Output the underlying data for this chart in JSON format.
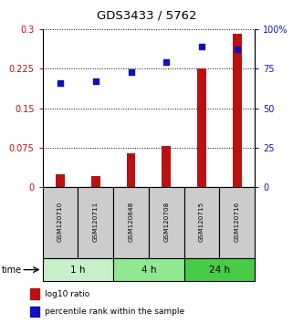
{
  "title": "GDS3433 / 5762",
  "samples": [
    "GSM120710",
    "GSM120711",
    "GSM120648",
    "GSM120708",
    "GSM120715",
    "GSM120716"
  ],
  "log10_ratio": [
    0.025,
    0.022,
    0.065,
    0.078,
    0.226,
    0.291
  ],
  "percentile_rank": [
    66,
    67,
    73,
    79,
    89,
    87
  ],
  "groups": [
    {
      "label": "1 h",
      "indices": [
        0,
        1
      ],
      "color": "#c8f0c8"
    },
    {
      "label": "4 h",
      "indices": [
        2,
        3
      ],
      "color": "#90e890"
    },
    {
      "label": "24 h",
      "indices": [
        4,
        5
      ],
      "color": "#48cc48"
    }
  ],
  "bar_color": "#bb1111",
  "dot_color": "#1111bb",
  "left_yticks": [
    0,
    0.075,
    0.15,
    0.225,
    0.3
  ],
  "left_ylim": [
    0,
    0.3
  ],
  "right_yticks": [
    0,
    25,
    50,
    75,
    100
  ],
  "right_ylim": [
    0,
    100
  ],
  "bg_color": "#ffffff",
  "label_red": "log10 ratio",
  "label_blue": "percentile rank within the sample",
  "time_label": "time",
  "sample_area_color": "#cccccc",
  "bar_width": 0.25
}
